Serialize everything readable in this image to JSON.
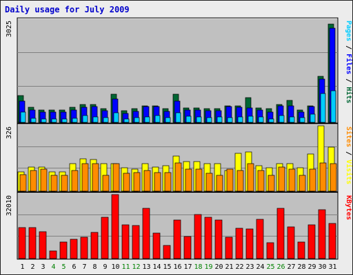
{
  "chart_data": {
    "type": "bar",
    "title": "Daily usage for July 2009",
    "days": [
      "1",
      "2",
      "3",
      "4",
      "5",
      "6",
      "7",
      "8",
      "9",
      "10",
      "11",
      "12",
      "13",
      "14",
      "15",
      "16",
      "17",
      "18",
      "19",
      "20",
      "21",
      "22",
      "23",
      "24",
      "25",
      "26",
      "27",
      "28",
      "29",
      "30",
      "31"
    ],
    "weekend_days": [
      "4",
      "5",
      "11",
      "12",
      "18",
      "19",
      "25",
      "26"
    ],
    "colors": {
      "hits": "#006633",
      "files": "#0000ff",
      "pages": "#00ccff",
      "visits": "#ffff00",
      "sites": "#ff8c00",
      "kbytes": "#ff0000",
      "weekday_label": "#000000",
      "weekend_label": "#008000",
      "plot_bg": "#c0c0c0",
      "grid": "#808080"
    },
    "panels": [
      {
        "id": "hits",
        "max_label": "3025",
        "right_labels": [
          {
            "text": "Pages",
            "color": "#00ccff"
          },
          {
            "text": " / ",
            "color": "#000000"
          },
          {
            "text": "Files",
            "color": "#0000ff"
          },
          {
            "text": " / ",
            "color": "#000000"
          },
          {
            "text": "Hits",
            "color": "#006633"
          }
        ],
        "scale_max": 3025,
        "series": [
          {
            "name": "Hits",
            "color": "#006633",
            "values": [
              800,
              450,
              370,
              370,
              370,
              450,
              530,
              530,
              400,
              830,
              340,
              400,
              480,
              480,
              400,
              830,
              430,
              430,
              400,
              400,
              480,
              480,
              730,
              430,
              400,
              530,
              640,
              370,
              480,
              1360,
              2900
            ]
          },
          {
            "name": "Files",
            "color": "#0000ff",
            "values": [
              620,
              370,
              300,
              300,
              300,
              370,
              450,
              470,
              350,
              690,
              270,
              330,
              460,
              470,
              330,
              620,
              360,
              370,
              350,
              350,
              460,
              450,
              420,
              360,
              300,
              480,
              480,
              300,
              460,
              1270,
              2790
            ]
          },
          {
            "name": "Pages",
            "color": "#00ccff",
            "values": [
              300,
              130,
              100,
              110,
              100,
              120,
              200,
              170,
              150,
              280,
              110,
              140,
              170,
              210,
              150,
              280,
              180,
              160,
              140,
              170,
              140,
              160,
              180,
              170,
              110,
              200,
              170,
              140,
              240,
              850,
              930
            ]
          }
        ]
      },
      {
        "id": "visits",
        "max_label": "326",
        "right_labels": [
          {
            "text": "Sites",
            "color": "#ff8c00"
          },
          {
            "text": " / ",
            "color": "#000000"
          },
          {
            "text": "Visits",
            "color": "#ffff00"
          }
        ],
        "scale_max": 326,
        "series": [
          {
            "name": "Visits",
            "color": "#ffff00",
            "values": [
              95,
              121,
              121,
              95,
              95,
              136,
              162,
              157,
              136,
              136,
              115,
              110,
              136,
              121,
              126,
              176,
              147,
              147,
              136,
              136,
              104,
              188,
              197,
              126,
              115,
              136,
              136,
              115,
              184,
              326,
              220
            ]
          },
          {
            "name": "Sites",
            "color": "#ff8c00",
            "values": [
              82,
              104,
              110,
              78,
              78,
              104,
              136,
              136,
              78,
              136,
              88,
              93,
              104,
              93,
              93,
              142,
              110,
              110,
              88,
              78,
              110,
              104,
              136,
              104,
              78,
              121,
              110,
              78,
              110,
              142,
              136
            ]
          }
        ]
      },
      {
        "id": "kbytes",
        "max_label": "32010",
        "right_labels": [
          {
            "text": "KBytes",
            "color": "#ff0000"
          }
        ],
        "scale_max": 32010,
        "series": [
          {
            "name": "KBytes",
            "color": "#ff0000",
            "values": [
              15500,
              15500,
              13300,
              3900,
              8300,
              9500,
              10500,
              13000,
              20700,
              32010,
              16900,
              16400,
              25000,
              12800,
              6700,
              19400,
              10900,
              22000,
              20500,
              19200,
              10800,
              15000,
              14800,
              19600,
              8000,
              25000,
              15900,
              8300,
              16900,
              24400,
              17400
            ]
          }
        ]
      }
    ]
  }
}
